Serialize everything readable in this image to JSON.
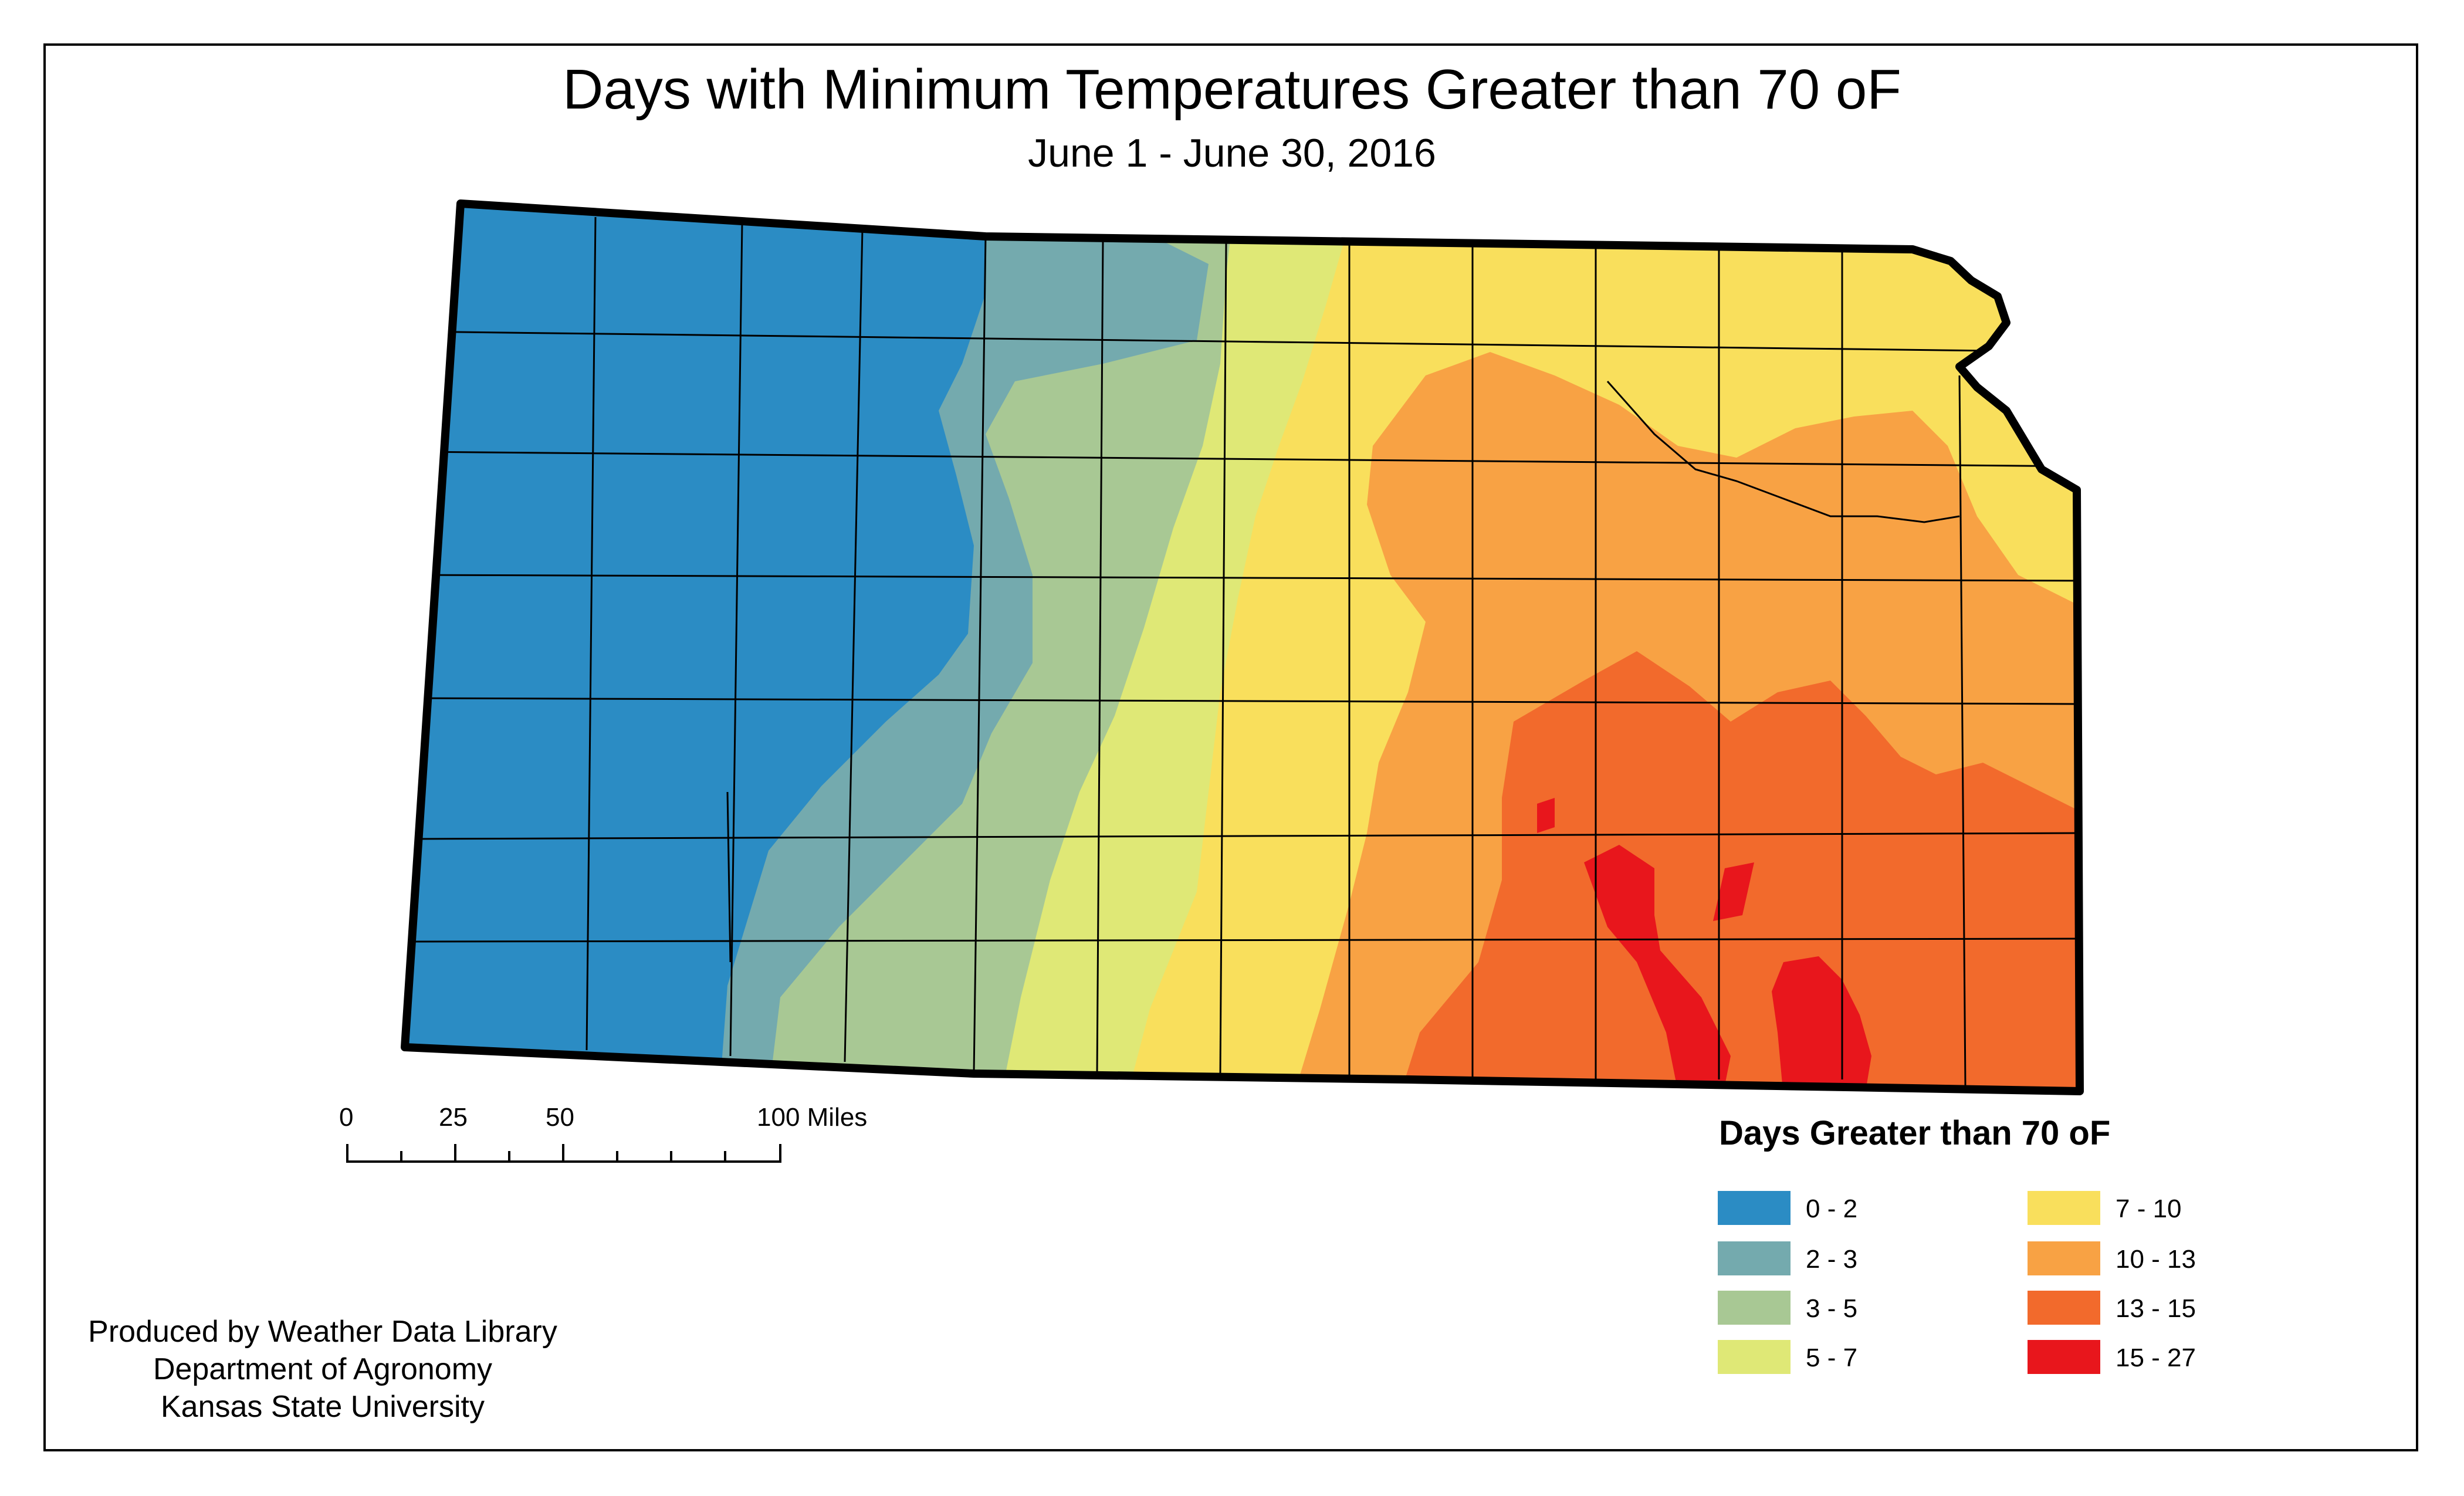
{
  "title": "Days with Minimum Temperatures Greater than 70 oF",
  "subtitle": "June 1 - June 30, 2016",
  "scale_bar": {
    "labels": [
      "0",
      "25",
      "50",
      "100 Miles"
    ]
  },
  "legend": {
    "title": "Days Greater than 70 oF",
    "classes": [
      {
        "label": "0 - 2",
        "color": "#2b8cc4"
      },
      {
        "label": "2 - 3",
        "color": "#74aaae"
      },
      {
        "label": "3 - 5",
        "color": "#a8c894"
      },
      {
        "label": "5 - 7",
        "color": "#dfe876"
      },
      {
        "label": "7 - 10",
        "color": "#f9df5c"
      },
      {
        "label": "10 - 13",
        "color": "#f8a244"
      },
      {
        "label": "13 - 15",
        "color": "#f26a2c"
      },
      {
        "label": "15 - 27",
        "color": "#e8161c"
      }
    ]
  },
  "credits": {
    "line1": "Produced by Weather Data Library",
    "line2": "Department of Agronomy",
    "line3": "Kansas State University"
  }
}
